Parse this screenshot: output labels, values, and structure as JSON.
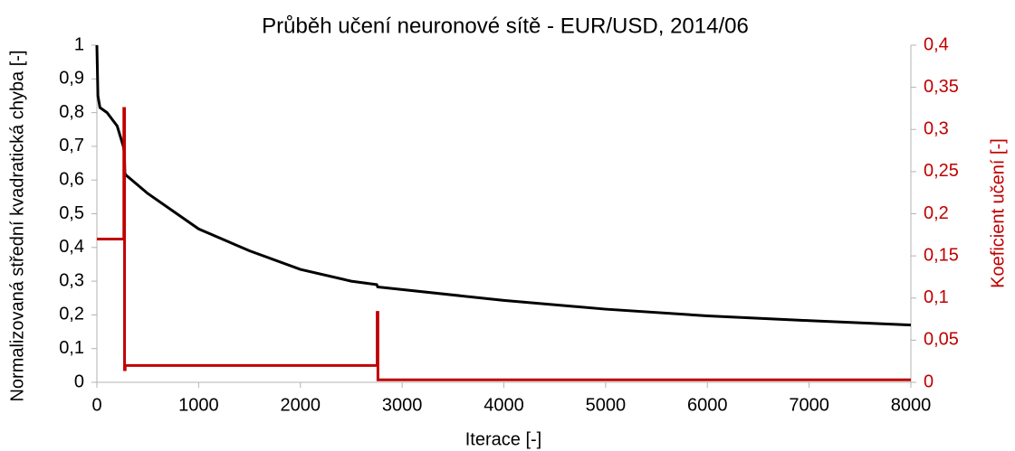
{
  "chart_data": {
    "type": "line",
    "title": "Průběh učení neuronové sítě - EUR/USD, 2014/06",
    "xlabel": "Iterace [-]",
    "ylabel": "Normalizovaná střední kvadratická chyba [-]",
    "y2label": "Koeficient učení [-]",
    "xlim": [
      0,
      8000
    ],
    "xticks": [
      0,
      1000,
      2000,
      3000,
      4000,
      5000,
      6000,
      7000,
      8000
    ],
    "ylim": [
      0,
      1
    ],
    "yticks": [
      0,
      {
        "value": 0.1,
        "label": "0,1"
      },
      {
        "value": 0.2,
        "label": "0,2"
      },
      {
        "value": 0.3,
        "label": "0,3"
      },
      {
        "value": 0.4,
        "label": "0,4"
      },
      {
        "value": 0.5,
        "label": "0,5"
      },
      {
        "value": 0.6,
        "label": "0,6"
      },
      {
        "value": 0.7,
        "label": "0,7"
      },
      {
        "value": 0.8,
        "label": "0,8"
      },
      {
        "value": 0.9,
        "label": "0,9"
      },
      1
    ],
    "y2lim": [
      0,
      0.4
    ],
    "y2ticks": [
      0,
      {
        "value": 0.05,
        "label": "0,05"
      },
      {
        "value": 0.1,
        "label": "0,1"
      },
      {
        "value": 0.15,
        "label": "0,15"
      },
      {
        "value": 0.2,
        "label": "0,2"
      },
      {
        "value": 0.25,
        "label": "0,25"
      },
      {
        "value": 0.3,
        "label": "0,3"
      },
      {
        "value": 0.35,
        "label": "0,35"
      },
      {
        "value": 0.4,
        "label": "0,4"
      }
    ],
    "y2color": "#c00000",
    "series": [
      {
        "color": "#000000",
        "axis": "y",
        "x": [
          0,
          10,
          30,
          100,
          200,
          260,
          270,
          275,
          285,
          500,
          1000,
          1500,
          2000,
          2500,
          2750,
          2760,
          3000,
          4000,
          5000,
          6000,
          7000,
          8000
        ],
        "values": [
          1.0,
          0.85,
          0.815,
          0.8,
          0.76,
          0.7,
          0.68,
          0.62,
          0.615,
          0.56,
          0.455,
          0.39,
          0.335,
          0.3,
          0.29,
          0.283,
          0.275,
          0.243,
          0.217,
          0.197,
          0.183,
          0.17
        ]
      },
      {
        "color": "#c00000",
        "axis": "y2",
        "x": [
          0,
          265,
          265,
          272,
          272,
          278,
          278,
          2755,
          2755,
          2762,
          2762,
          8000
        ],
        "values": [
          0.17,
          0.17,
          0.325,
          0.325,
          0.015,
          0.015,
          0.02,
          0.02,
          0.083,
          0.083,
          0.003,
          0.003
        ]
      }
    ]
  }
}
